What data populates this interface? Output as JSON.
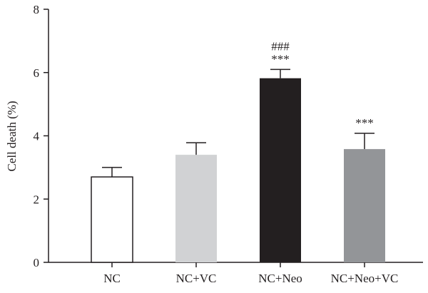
{
  "chart_data": {
    "type": "bar",
    "categories": [
      "NC",
      "NC+VC",
      "NC+Neo",
      "NC+Neo+VC"
    ],
    "values": [
      2.7,
      3.4,
      5.82,
      3.58
    ],
    "errors": [
      0.3,
      0.38,
      0.28,
      0.5
    ],
    "bar_colors": [
      "#ffffff",
      "#d1d2d4",
      "#231f20",
      "#939598"
    ],
    "annotations": [
      {
        "category": "NC+Neo",
        "lines": [
          "###",
          "***"
        ]
      },
      {
        "category": "NC+Neo+VC",
        "lines": [
          "***"
        ]
      }
    ],
    "title": "",
    "xlabel": "",
    "ylabel": "Cell death (%)",
    "ylim": [
      0,
      8
    ],
    "yticks": [
      0,
      2,
      4,
      6,
      8
    ],
    "grid": false,
    "legend": "none"
  }
}
